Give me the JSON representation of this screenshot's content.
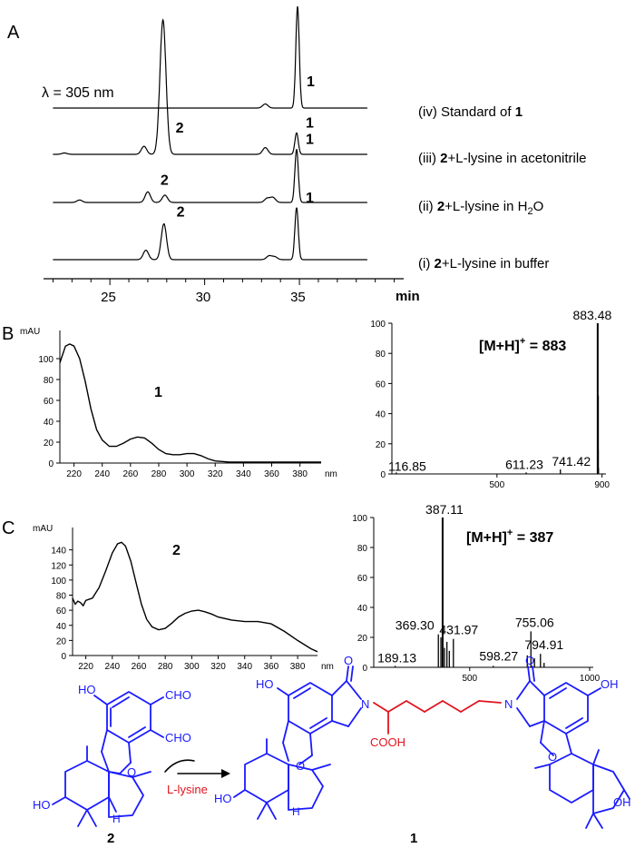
{
  "panels": {
    "a": "A",
    "b": "B",
    "c": "C"
  },
  "chart_data": [
    {
      "type": "line",
      "panel": "A",
      "annotation": "λ = 305 nm",
      "xlabel": "min",
      "xlim": [
        21.5,
        40.5
      ],
      "xticks": [
        25,
        30,
        35
      ],
      "traces": [
        {
          "name": "(iv) Standard of 1",
          "prefix": "(iv) Standard of ",
          "bold": "1",
          "suffix": "",
          "peaks": [
            {
              "x": 33.2,
              "h": 0.04
            },
            {
              "x": 34.9,
              "h": 1.0
            }
          ],
          "peak_labels": [
            {
              "x": 34.9,
              "text": "1"
            }
          ]
        },
        {
          "name": "(iii) 2+L-lysine in acetonitrile",
          "prefix": "(iii) ",
          "bold": "2",
          "suffix": "+L-lysine in acetonitrile",
          "peaks": [
            {
              "x": 22.6,
              "h": 0.01
            },
            {
              "x": 26.8,
              "h": 0.06
            },
            {
              "x": 27.8,
              "h": 1.0
            },
            {
              "x": 33.2,
              "h": 0.05
            },
            {
              "x": 34.85,
              "h": 0.16
            }
          ],
          "peak_labels": [
            {
              "x": 27.8,
              "text": "2"
            },
            {
              "x": 34.85,
              "text": "1"
            }
          ]
        },
        {
          "name": "(ii) 2+L-lysine in H2O",
          "prefix": "(ii) ",
          "bold": "2",
          "suffix": "+L-lysine in H",
          "sub": "2",
          "suffix2": "O",
          "peaks": [
            {
              "x": 23.4,
              "h": 0.03
            },
            {
              "x": 27.0,
              "h": 0.13
            },
            {
              "x": 27.9,
              "h": 0.09
            },
            {
              "x": 33.3,
              "h": 0.05
            },
            {
              "x": 33.6,
              "h": 0.06
            },
            {
              "x": 34.85,
              "h": 0.65
            }
          ],
          "peak_labels": [
            {
              "x": 27.0,
              "text": "2"
            },
            {
              "x": 34.85,
              "text": "1"
            }
          ]
        },
        {
          "name": "(i) 2+L-lysine in buffer",
          "prefix": "(i) ",
          "bold": "2",
          "suffix": "+L-lysine in buffer",
          "peaks": [
            {
              "x": 26.9,
              "h": 0.1
            },
            {
              "x": 27.85,
              "h": 0.38
            },
            {
              "x": 33.4,
              "h": 0.04
            },
            {
              "x": 33.7,
              "h": 0.03
            },
            {
              "x": 34.85,
              "h": 0.55
            }
          ],
          "peak_labels": [
            {
              "x": 27.85,
              "text": "2"
            },
            {
              "x": 34.85,
              "text": "1"
            }
          ]
        }
      ]
    },
    {
      "type": "line",
      "panel": "B-UV",
      "compound_label": "1",
      "ylabel": "mAU",
      "xunit": "nm",
      "xlim": [
        210,
        395
      ],
      "ylim": [
        0,
        120
      ],
      "xticks": [
        220,
        240,
        260,
        280,
        300,
        320,
        340,
        360,
        380
      ],
      "yticks": [
        0,
        20,
        40,
        60,
        80,
        100
      ],
      "x": [
        210,
        214,
        217,
        220,
        224,
        228,
        232,
        236,
        240,
        245,
        250,
        255,
        260,
        265,
        270,
        275,
        280,
        285,
        290,
        295,
        300,
        305,
        310,
        315,
        320,
        330,
        340,
        360,
        380,
        395
      ],
      "y": [
        96,
        112,
        114,
        112,
        100,
        78,
        52,
        32,
        22,
        16,
        16,
        19,
        23,
        25,
        24,
        19,
        13,
        9,
        8,
        8,
        9,
        9,
        7,
        4,
        2,
        1,
        1,
        1,
        1,
        1
      ]
    },
    {
      "type": "bar",
      "panel": "B-MS",
      "title": "[M+H]+ = 883",
      "title_main": "[M+H]",
      "title_sup": "+",
      "title_rest": " = 883",
      "xlim": [
        100,
        915
      ],
      "ylim": [
        0,
        100
      ],
      "xticks": [
        500,
        900
      ],
      "yticks": [
        0,
        20,
        40,
        60,
        80,
        100
      ],
      "peaks": [
        {
          "mz": 116.85,
          "i": 1,
          "label": "116.85"
        },
        {
          "mz": 611.23,
          "i": 1,
          "label": "611.23"
        },
        {
          "mz": 741.42,
          "i": 3,
          "label": "741.42"
        },
        {
          "mz": 883.48,
          "i": 100,
          "label": "883.48"
        },
        {
          "mz": 884.5,
          "i": 52
        },
        {
          "mz": 885.5,
          "i": 16
        },
        {
          "mz": 886.5,
          "i": 4
        }
      ]
    },
    {
      "type": "line",
      "panel": "C-UV",
      "compound_label": "2",
      "ylabel": "mAU",
      "xunit": "nm",
      "xlim": [
        210,
        395
      ],
      "ylim": [
        0,
        160
      ],
      "xticks": [
        220,
        240,
        260,
        280,
        300,
        320,
        340,
        360,
        380
      ],
      "yticks": [
        0,
        20,
        40,
        60,
        80,
        100,
        120,
        140
      ],
      "x": [
        210,
        212,
        214,
        216,
        218,
        220,
        225,
        230,
        235,
        240,
        244,
        247,
        250,
        254,
        258,
        262,
        266,
        270,
        275,
        280,
        285,
        290,
        295,
        300,
        305,
        310,
        315,
        320,
        330,
        340,
        350,
        360,
        370,
        380,
        390,
        395
      ],
      "y": [
        76,
        68,
        72,
        70,
        66,
        73,
        76,
        90,
        112,
        136,
        148,
        150,
        145,
        125,
        96,
        68,
        48,
        38,
        34,
        36,
        43,
        51,
        56,
        59,
        60,
        58,
        55,
        51,
        47,
        45,
        45,
        42,
        32,
        20,
        9,
        5
      ]
    },
    {
      "type": "bar",
      "panel": "C-MS",
      "title": "[M+H]+ = 387",
      "title_main": "[M+H]",
      "title_sup": "+",
      "title_rest": " = 387",
      "xlim": [
        100,
        1015
      ],
      "ylim": [
        0,
        100
      ],
      "xticks": [
        500,
        1000
      ],
      "yticks": [
        0,
        20,
        40,
        60,
        80,
        100
      ],
      "peaks": [
        {
          "mz": 189.13,
          "i": 1,
          "label": "189.13"
        },
        {
          "mz": 369.3,
          "i": 22,
          "label": "369.30"
        },
        {
          "mz": 380.0,
          "i": 20
        },
        {
          "mz": 387.11,
          "i": 100,
          "label": "387.11"
        },
        {
          "mz": 395.0,
          "i": 13
        },
        {
          "mz": 405.0,
          "i": 17
        },
        {
          "mz": 415.0,
          "i": 11
        },
        {
          "mz": 431.97,
          "i": 19,
          "label": "431.97"
        },
        {
          "mz": 598.27,
          "i": 1,
          "label": "598.27"
        },
        {
          "mz": 740.0,
          "i": 8
        },
        {
          "mz": 755.06,
          "i": 24,
          "label": "755.06"
        },
        {
          "mz": 770.0,
          "i": 6
        },
        {
          "mz": 794.91,
          "i": 9,
          "label": "794.91"
        },
        {
          "mz": 810.0,
          "i": 3
        }
      ]
    }
  ],
  "scheme": {
    "compound2_label": "2",
    "compound1_label": "1",
    "reagent": "L-lysine",
    "ho": "HO",
    "oh": "OH",
    "cho": "CHO",
    "o": "O",
    "n": "N",
    "h": "H",
    "cooh": "COOH"
  }
}
